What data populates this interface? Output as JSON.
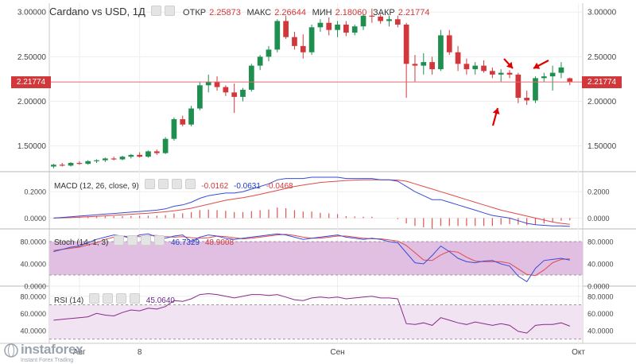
{
  "header": {
    "symbol": "Cardano vs USD, 1Д",
    "open_label": "ОТКР",
    "open_value": "2.25873",
    "high_label": "МАКС",
    "high_value": "2.26644",
    "low_label": "МИН",
    "low_value": "2.18060",
    "close_label": "ЗАКР",
    "close_value": "2.21774"
  },
  "current_price_label": "2.21774",
  "macd_header": {
    "title": "MACD (12, 26, close, 9)",
    "hist": "-0.0162",
    "macd": "-0.0631",
    "signal": "-0.0468"
  },
  "stoch_header": {
    "title": "Stoch (14, 1, 3)",
    "k": "46.7329",
    "d": "48.9008"
  },
  "rsi_header": {
    "title": "RSI (14)",
    "value": "45.0640"
  },
  "logo": {
    "name": "instaforex",
    "tagline": "Instant Forex Trading"
  },
  "colors": {
    "up": "#1f8f4f",
    "down": "#d2383b",
    "price_line": "#e06b6b",
    "macd_line": "#3a4bd6",
    "signal_line": "#e04a4a",
    "hist": "#e05555",
    "stoch_k": "#3a4bd6",
    "stoch_d": "#e04a4a",
    "stoch_band": "#e0bfe3",
    "rsi_line": "#8a2b8a",
    "rsi_band": "#f1e3f2",
    "arrow": "#e00000"
  },
  "chart_data": [
    {
      "type": "candlestick",
      "name": "Cardano vs USD, 1Д",
      "ylim": [
        1.23,
        3.1
      ],
      "y_ticks": [
        "3.00000",
        "2.50000",
        "2.00000",
        "1.50000"
      ],
      "y_tick_values": [
        3.0,
        2.5,
        2.0,
        1.5
      ],
      "x_tick_labels": [
        "Авг",
        "8",
        "Сен",
        "Окт"
      ],
      "x_tick_index": [
        3,
        10,
        33,
        61
      ],
      "n_slots": 62,
      "candles": [
        {
          "o": 1.27,
          "h": 1.3,
          "l": 1.25,
          "c": 1.29
        },
        {
          "o": 1.29,
          "h": 1.31,
          "l": 1.27,
          "c": 1.28
        },
        {
          "o": 1.28,
          "h": 1.32,
          "l": 1.27,
          "c": 1.31
        },
        {
          "o": 1.31,
          "h": 1.33,
          "l": 1.29,
          "c": 1.3
        },
        {
          "o": 1.3,
          "h": 1.34,
          "l": 1.29,
          "c": 1.33
        },
        {
          "o": 1.33,
          "h": 1.35,
          "l": 1.31,
          "c": 1.34
        },
        {
          "o": 1.34,
          "h": 1.37,
          "l": 1.32,
          "c": 1.36
        },
        {
          "o": 1.36,
          "h": 1.38,
          "l": 1.34,
          "c": 1.35
        },
        {
          "o": 1.35,
          "h": 1.39,
          "l": 1.34,
          "c": 1.38
        },
        {
          "o": 1.38,
          "h": 1.41,
          "l": 1.36,
          "c": 1.4
        },
        {
          "o": 1.4,
          "h": 1.43,
          "l": 1.37,
          "c": 1.38
        },
        {
          "o": 1.38,
          "h": 1.45,
          "l": 1.37,
          "c": 1.44
        },
        {
          "o": 1.44,
          "h": 1.46,
          "l": 1.4,
          "c": 1.42
        },
        {
          "o": 1.42,
          "h": 1.6,
          "l": 1.41,
          "c": 1.58
        },
        {
          "o": 1.58,
          "h": 1.82,
          "l": 1.56,
          "c": 1.8
        },
        {
          "o": 1.8,
          "h": 1.84,
          "l": 1.72,
          "c": 1.74
        },
        {
          "o": 1.74,
          "h": 1.95,
          "l": 1.72,
          "c": 1.92
        },
        {
          "o": 1.92,
          "h": 2.22,
          "l": 1.9,
          "c": 2.18
        },
        {
          "o": 2.18,
          "h": 2.3,
          "l": 2.1,
          "c": 2.22
        },
        {
          "o": 2.22,
          "h": 2.28,
          "l": 2.12,
          "c": 2.16
        },
        {
          "o": 2.16,
          "h": 2.18,
          "l": 2.06,
          "c": 2.1
        },
        {
          "o": 2.1,
          "h": 2.2,
          "l": 1.87,
          "c": 2.05
        },
        {
          "o": 2.05,
          "h": 2.15,
          "l": 2.0,
          "c": 2.13
        },
        {
          "o": 2.13,
          "h": 2.42,
          "l": 2.11,
          "c": 2.4
        },
        {
          "o": 2.4,
          "h": 2.52,
          "l": 2.35,
          "c": 2.5
        },
        {
          "o": 2.5,
          "h": 2.62,
          "l": 2.45,
          "c": 2.58
        },
        {
          "o": 2.58,
          "h": 2.92,
          "l": 2.55,
          "c": 2.9
        },
        {
          "o": 2.9,
          "h": 2.96,
          "l": 2.7,
          "c": 2.72
        },
        {
          "o": 2.72,
          "h": 2.78,
          "l": 2.58,
          "c": 2.62
        },
        {
          "o": 2.62,
          "h": 2.75,
          "l": 2.48,
          "c": 2.55
        },
        {
          "o": 2.55,
          "h": 2.86,
          "l": 2.52,
          "c": 2.83
        },
        {
          "o": 2.83,
          "h": 2.92,
          "l": 2.78,
          "c": 2.88
        },
        {
          "o": 2.88,
          "h": 2.94,
          "l": 2.74,
          "c": 2.8
        },
        {
          "o": 2.8,
          "h": 2.9,
          "l": 2.72,
          "c": 2.86
        },
        {
          "o": 2.86,
          "h": 2.9,
          "l": 2.73,
          "c": 2.77
        },
        {
          "o": 2.77,
          "h": 2.86,
          "l": 2.74,
          "c": 2.84
        },
        {
          "o": 2.84,
          "h": 2.98,
          "l": 2.8,
          "c": 2.96
        },
        {
          "o": 2.96,
          "h": 3.04,
          "l": 2.88,
          "c": 2.95
        },
        {
          "o": 2.95,
          "h": 2.98,
          "l": 2.87,
          "c": 2.9
        },
        {
          "o": 2.9,
          "h": 2.96,
          "l": 2.84,
          "c": 2.92
        },
        {
          "o": 2.92,
          "h": 2.96,
          "l": 2.83,
          "c": 2.86
        },
        {
          "o": 2.86,
          "h": 2.88,
          "l": 2.04,
          "c": 2.42
        },
        {
          "o": 2.42,
          "h": 2.52,
          "l": 2.22,
          "c": 2.4
        },
        {
          "o": 2.4,
          "h": 2.54,
          "l": 2.3,
          "c": 2.44
        },
        {
          "o": 2.44,
          "h": 2.5,
          "l": 2.3,
          "c": 2.36
        },
        {
          "o": 2.36,
          "h": 2.8,
          "l": 2.34,
          "c": 2.74
        },
        {
          "o": 2.74,
          "h": 2.8,
          "l": 2.52,
          "c": 2.55
        },
        {
          "o": 2.55,
          "h": 2.62,
          "l": 2.34,
          "c": 2.42
        },
        {
          "o": 2.42,
          "h": 2.48,
          "l": 2.3,
          "c": 2.36
        },
        {
          "o": 2.36,
          "h": 2.44,
          "l": 2.3,
          "c": 2.4
        },
        {
          "o": 2.4,
          "h": 2.46,
          "l": 2.32,
          "c": 2.34
        },
        {
          "o": 2.34,
          "h": 2.38,
          "l": 2.26,
          "c": 2.3
        },
        {
          "o": 2.3,
          "h": 2.36,
          "l": 2.22,
          "c": 2.32
        },
        {
          "o": 2.32,
          "h": 2.35,
          "l": 2.26,
          "c": 2.3
        },
        {
          "o": 2.3,
          "h": 2.32,
          "l": 1.98,
          "c": 2.04
        },
        {
          "o": 2.04,
          "h": 2.12,
          "l": 1.96,
          "c": 2.01
        },
        {
          "o": 2.01,
          "h": 2.28,
          "l": 1.98,
          "c": 2.26
        },
        {
          "o": 2.26,
          "h": 2.32,
          "l": 2.22,
          "c": 2.28
        },
        {
          "o": 2.28,
          "h": 2.4,
          "l": 2.12,
          "c": 2.32
        },
        {
          "o": 2.32,
          "h": 2.44,
          "l": 2.26,
          "c": 2.38
        },
        {
          "o": 2.25873,
          "h": 2.26644,
          "l": 2.1806,
          "c": 2.21774
        }
      ],
      "current_price": 2.21774
    },
    {
      "type": "line",
      "name": "MACD (12, 26, close, 9)",
      "ylim": [
        -0.07,
        0.34
      ],
      "y_ticks": [
        "0.2000",
        "0.0000"
      ],
      "y_tick_values": [
        0.2,
        0.0
      ],
      "series": [
        {
          "name": "MACD",
          "values": [
            0.0,
            0.005,
            0.01,
            0.015,
            0.02,
            0.025,
            0.03,
            0.035,
            0.04,
            0.045,
            0.05,
            0.055,
            0.06,
            0.07,
            0.09,
            0.1,
            0.12,
            0.15,
            0.17,
            0.18,
            0.19,
            0.19,
            0.2,
            0.22,
            0.24,
            0.26,
            0.29,
            0.3,
            0.3,
            0.3,
            0.31,
            0.31,
            0.31,
            0.31,
            0.3,
            0.3,
            0.3,
            0.3,
            0.29,
            0.29,
            0.28,
            0.24,
            0.2,
            0.17,
            0.14,
            0.14,
            0.12,
            0.1,
            0.08,
            0.06,
            0.04,
            0.02,
            0.01,
            0.0,
            -0.02,
            -0.04,
            -0.05,
            -0.055,
            -0.06,
            -0.06,
            -0.0631
          ]
        },
        {
          "name": "Signal",
          "values": [
            0.0,
            0.002,
            0.004,
            0.007,
            0.01,
            0.013,
            0.017,
            0.021,
            0.025,
            0.029,
            0.033,
            0.037,
            0.042,
            0.048,
            0.055,
            0.064,
            0.075,
            0.09,
            0.105,
            0.12,
            0.135,
            0.145,
            0.155,
            0.167,
            0.18,
            0.195,
            0.21,
            0.225,
            0.24,
            0.25,
            0.26,
            0.27,
            0.275,
            0.28,
            0.285,
            0.288,
            0.29,
            0.29,
            0.29,
            0.29,
            0.288,
            0.28,
            0.26,
            0.24,
            0.22,
            0.2,
            0.18,
            0.16,
            0.14,
            0.12,
            0.1,
            0.08,
            0.06,
            0.045,
            0.03,
            0.015,
            0.0,
            -0.015,
            -0.03,
            -0.04,
            -0.0468
          ]
        },
        {
          "name": "Histogram",
          "values": [
            0.0,
            0.003,
            0.006,
            0.008,
            0.01,
            0.012,
            0.013,
            0.014,
            0.015,
            0.016,
            0.017,
            0.018,
            0.018,
            0.022,
            0.035,
            0.036,
            0.045,
            0.06,
            0.065,
            0.06,
            0.055,
            0.045,
            0.045,
            0.053,
            0.06,
            0.065,
            0.08,
            0.075,
            0.06,
            0.05,
            0.05,
            0.04,
            0.035,
            0.03,
            0.015,
            0.012,
            0.01,
            0.01,
            0.0,
            0.0,
            -0.008,
            -0.04,
            -0.06,
            -0.07,
            -0.08,
            -0.06,
            -0.06,
            -0.06,
            -0.06,
            -0.06,
            -0.06,
            -0.06,
            -0.05,
            -0.045,
            -0.05,
            -0.055,
            -0.05,
            -0.04,
            -0.03,
            -0.02,
            -0.0162
          ]
        }
      ]
    },
    {
      "type": "line",
      "name": "Stoch (14, 1, 3)",
      "ylim": [
        0,
        100
      ],
      "y_ticks": [
        "80.0000",
        "40.0000",
        "0.0000"
      ],
      "y_tick_values": [
        80,
        40,
        0
      ],
      "band": [
        20,
        80
      ],
      "series": [
        {
          "name": "%K",
          "values": [
            62,
            66,
            70,
            72,
            78,
            84,
            88,
            92,
            90,
            86,
            92,
            94,
            88,
            86,
            90,
            92,
            80,
            88,
            92,
            90,
            86,
            84,
            86,
            88,
            90,
            92,
            94,
            92,
            88,
            84,
            86,
            88,
            90,
            92,
            88,
            86,
            84,
            86,
            84,
            80,
            78,
            60,
            42,
            40,
            55,
            72,
            62,
            50,
            44,
            42,
            45,
            46,
            40,
            36,
            18,
            8,
            32,
            46,
            48,
            50,
            46.7
          ]
        },
        {
          "name": "%D",
          "values": [
            64,
            66,
            68,
            70,
            74,
            78,
            84,
            88,
            90,
            89,
            89,
            91,
            91,
            89,
            88,
            89,
            87,
            86,
            87,
            90,
            89,
            87,
            85,
            86,
            88,
            90,
            92,
            93,
            91,
            88,
            86,
            86,
            88,
            90,
            90,
            88,
            86,
            85,
            85,
            83,
            81,
            73,
            60,
            47,
            46,
            56,
            63,
            61,
            52,
            45,
            44,
            44,
            44,
            41,
            31,
            21,
            19,
            29,
            42,
            48,
            48.9
          ]
        }
      ]
    },
    {
      "type": "line",
      "name": "RSI (14)",
      "ylim": [
        25,
        90
      ],
      "y_ticks": [
        "80.0000",
        "60.0000",
        "40.0000"
      ],
      "y_tick_values": [
        80,
        60,
        40
      ],
      "band": [
        30,
        70
      ],
      "series": [
        {
          "name": "RSI",
          "values": [
            52,
            53,
            54,
            55,
            56,
            60,
            58,
            57,
            61,
            64,
            63,
            66,
            65,
            68,
            75,
            74,
            77,
            82,
            83,
            82,
            80,
            78,
            80,
            82,
            82,
            81,
            82,
            79,
            76,
            75,
            78,
            79,
            78,
            79,
            77,
            78,
            79,
            80,
            78,
            78,
            77,
            48,
            47,
            49,
            46,
            55,
            52,
            49,
            47,
            50,
            48,
            46,
            48,
            46,
            39,
            37,
            46,
            47,
            47,
            49,
            45.06
          ]
        }
      ]
    }
  ]
}
